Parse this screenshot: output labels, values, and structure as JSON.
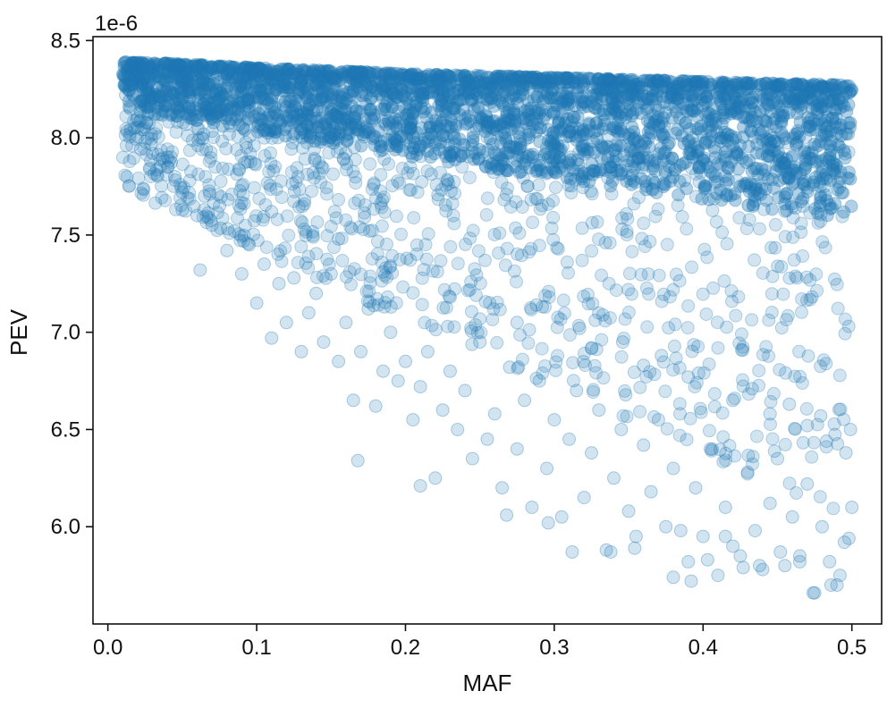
{
  "chart_data": {
    "type": "scatter",
    "title": "",
    "xlabel": "MAF",
    "ylabel": "PEV",
    "y_scale_offset_label": "1e-6",
    "xlim": [
      -0.01,
      0.52
    ],
    "ylim": [
      5.5e-06,
      8.52e-06
    ],
    "x_ticks": [
      0.0,
      0.1,
      0.2,
      0.3,
      0.4,
      0.5
    ],
    "x_tick_labels": [
      "0.0",
      "0.1",
      "0.2",
      "0.3",
      "0.4",
      "0.5"
    ],
    "y_ticks": [
      6e-06,
      6.5e-06,
      7e-06,
      7.5e-06,
      8e-06,
      8.5e-06
    ],
    "y_tick_labels": [
      "6.0",
      "6.5",
      "7.0",
      "7.5",
      "8.0",
      "8.5"
    ],
    "grid": false,
    "marker_color": "#1f77b4",
    "marker_alpha": 0.2,
    "upper_envelope": {
      "x": [
        0.01,
        0.05,
        0.1,
        0.2,
        0.3,
        0.4,
        0.5
      ],
      "y": [
        8.39e-06,
        8.38e-06,
        8.36e-06,
        8.33e-06,
        8.31e-06,
        8.29e-06,
        8.27e-06
      ]
    },
    "series": [
      {
        "x": [
          0.012,
          0.015,
          0.018,
          0.02,
          0.025,
          0.03,
          0.035,
          0.04,
          0.045,
          0.05,
          0.055,
          0.06,
          0.065,
          0.07,
          0.075,
          0.08,
          0.085,
          0.09,
          0.095,
          0.1,
          0.105,
          0.11,
          0.115,
          0.12,
          0.125,
          0.13,
          0.135,
          0.14,
          0.145,
          0.15,
          0.155,
          0.16,
          0.165,
          0.17,
          0.175,
          0.18,
          0.185,
          0.19,
          0.195,
          0.2,
          0.205,
          0.21,
          0.215,
          0.22,
          0.225,
          0.23,
          0.235,
          0.24,
          0.245,
          0.25,
          0.255,
          0.26,
          0.265,
          0.27,
          0.275,
          0.28,
          0.285,
          0.29,
          0.295,
          0.3,
          0.305,
          0.31,
          0.315,
          0.32,
          0.325,
          0.33,
          0.335,
          0.34,
          0.345,
          0.35,
          0.355,
          0.36,
          0.365,
          0.37,
          0.375,
          0.38,
          0.385,
          0.39,
          0.395,
          0.4,
          0.405,
          0.41,
          0.415,
          0.42,
          0.425,
          0.43,
          0.435,
          0.44,
          0.445,
          0.45,
          0.455,
          0.46,
          0.465,
          0.47,
          0.475,
          0.48,
          0.485,
          0.49,
          0.495,
          0.5,
          0.062,
          0.168,
          0.21,
          0.268,
          0.296,
          0.312,
          0.338,
          0.354,
          0.38,
          0.392,
          0.403,
          0.415,
          0.427,
          0.438,
          0.452,
          0.465,
          0.474,
          0.486,
          0.492,
          0.498,
          0.11,
          0.155,
          0.185,
          0.23,
          0.275,
          0.325,
          0.36,
          0.39,
          0.42,
          0.445,
          0.47,
          0.483,
          0.496,
          0.088,
          0.132,
          0.176,
          0.201,
          0.244,
          0.288,
          0.317,
          0.346,
          0.372,
          0.397,
          0.433,
          0.458,
          0.479,
          0.499
        ],
        "y": [
          8.22e-06,
          8.15e-06,
          8.05e-06,
          8.1e-06,
          7.98e-06,
          7.92e-06,
          7.85e-06,
          7.9e-06,
          7.8e-06,
          7.72e-06,
          7.78e-06,
          7.6e-06,
          7.7e-06,
          7.55e-06,
          7.65e-06,
          7.42e-06,
          7.52e-06,
          7.3e-06,
          7.45e-06,
          7.15e-06,
          7.35e-06,
          6.97e-06,
          7.25e-06,
          7.05e-06,
          7.28e-06,
          6.9e-06,
          7.1e-06,
          7.2e-06,
          6.95e-06,
          7.3e-06,
          6.85e-06,
          7.05e-06,
          6.65e-06,
          6.9e-06,
          7.12e-06,
          6.62e-06,
          6.8e-06,
          7e-06,
          6.75e-06,
          6.85e-06,
          6.55e-06,
          6.72e-06,
          6.9e-06,
          6.25e-06,
          6.6e-06,
          6.8e-06,
          6.5e-06,
          6.7e-06,
          6.35e-06,
          6.95e-06,
          6.45e-06,
          6.58e-06,
          6.2e-06,
          6.82e-06,
          6.4e-06,
          6.65e-06,
          6.1e-06,
          6.75e-06,
          6.3e-06,
          6.55e-06,
          6.05e-06,
          6.45e-06,
          6.7e-06,
          6.15e-06,
          6.38e-06,
          6.6e-06,
          5.88e-06,
          6.25e-06,
          6.5e-06,
          6.08e-06,
          5.95e-06,
          6.42e-06,
          6.18e-06,
          6.55e-06,
          6e-06,
          6.3e-06,
          5.98e-06,
          5.82e-06,
          6.2e-06,
          5.95e-06,
          6.4e-06,
          5.75e-06,
          6.1e-06,
          5.9e-06,
          5.85e-06,
          6.28e-06,
          5.98e-06,
          5.78e-06,
          6.12e-06,
          6.35e-06,
          5.8e-06,
          6.05e-06,
          5.85e-06,
          6.22e-06,
          5.66e-06,
          6e-06,
          5.82e-06,
          5.7e-06,
          5.92e-06,
          6.1e-06,
          7.32e-06,
          6.34e-06,
          6.21e-06,
          6.06e-06,
          6.02e-06,
          5.87e-06,
          5.87e-06,
          5.89e-06,
          5.74e-06,
          5.72e-06,
          5.83e-06,
          5.95e-06,
          5.79e-06,
          5.8e-06,
          5.87e-06,
          5.82e-06,
          5.66e-06,
          5.7e-06,
          5.75e-06,
          5.94e-06,
          7.62e-06,
          7.48e-06,
          7.31e-06,
          7.18e-06,
          7.05e-06,
          6.92e-06,
          6.83e-06,
          6.77e-06,
          6.65e-06,
          6.58e-06,
          6.52e-06,
          6.44e-06,
          6.38e-06,
          7.84e-06,
          7.66e-06,
          7.52e-06,
          7.38e-06,
          7.26e-06,
          7.14e-06,
          7.02e-06,
          6.95e-06,
          6.88e-06,
          6.79e-06,
          6.71e-06,
          6.63e-06,
          6.57e-06,
          6.5e-06
        ]
      }
    ]
  }
}
